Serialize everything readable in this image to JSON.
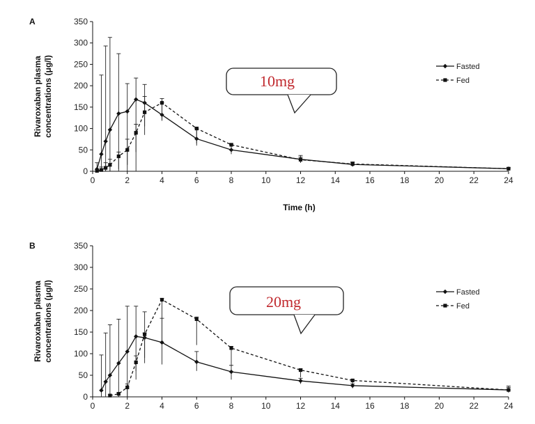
{
  "chart_data": [
    {
      "panel": "A",
      "type": "line",
      "xlabel": "Time (h)",
      "ylabel": "Rivaroxaban plasma concentrations (μg/l)",
      "xlim": [
        0,
        24
      ],
      "ylim": [
        0,
        350
      ],
      "xticks": [
        0,
        2,
        4,
        6,
        8,
        10,
        12,
        14,
        16,
        18,
        20,
        22,
        24
      ],
      "yticks": [
        0,
        50,
        100,
        150,
        200,
        250,
        300,
        350
      ],
      "grid": false,
      "legend_position": "top-right",
      "callout": "10mg",
      "callout_color": "#c0282d",
      "series": [
        {
          "name": "Fasted",
          "style": "solid",
          "x": [
            0.25,
            0.5,
            0.75,
            1,
            1.5,
            2,
            2.5,
            3,
            4,
            6,
            8,
            12,
            15,
            24
          ],
          "y": [
            5,
            40,
            70,
            97,
            135,
            140,
            168,
            160,
            132,
            76,
            50,
            28,
            16,
            6
          ],
          "err_upper": [
            20,
            225,
            293,
            313,
            275,
            205,
            218,
            203,
            160,
            100,
            62,
            37,
            20,
            9
          ],
          "err_lower": [
            0,
            0,
            0,
            0,
            0,
            0,
            0,
            105,
            118,
            60,
            40,
            20,
            12,
            3
          ]
        },
        {
          "name": "Fed",
          "style": "dashed",
          "x": [
            0.25,
            0.5,
            0.75,
            1,
            1.5,
            2,
            2.5,
            3,
            4,
            6,
            8,
            12,
            15,
            24
          ],
          "y": [
            1,
            3,
            8,
            15,
            35,
            50,
            90,
            138,
            160,
            100,
            62,
            27,
            17,
            6
          ],
          "err_upper": [
            4,
            10,
            20,
            28,
            45,
            75,
            110,
            175,
            170,
            103,
            65,
            33,
            22,
            9
          ],
          "err_lower": [
            0,
            0,
            0,
            0,
            5,
            15,
            45,
            85,
            120,
            65,
            45,
            20,
            12,
            3
          ]
        }
      ]
    },
    {
      "panel": "B",
      "type": "line",
      "xlabel": "",
      "ylabel": "Rivaroxaban plasma concentrations (μg/l)",
      "xlim": [
        0,
        24
      ],
      "ylim": [
        0,
        350
      ],
      "xticks": [
        0,
        2,
        4,
        6,
        8,
        10,
        12,
        14,
        16,
        18,
        20,
        22,
        24
      ],
      "yticks": [
        0,
        50,
        100,
        150,
        200,
        250,
        300,
        350
      ],
      "grid": false,
      "legend_position": "top-right",
      "callout": "20mg",
      "callout_color": "#c0282d",
      "series": [
        {
          "name": "Fasted",
          "style": "solid",
          "x": [
            0.5,
            0.75,
            1,
            1.5,
            2,
            2.5,
            3,
            4,
            6,
            8,
            12,
            15,
            24
          ],
          "y": [
            15,
            35,
            50,
            78,
            105,
            140,
            137,
            126,
            81,
            58,
            37,
            26,
            16
          ],
          "err_upper": [
            97,
            148,
            167,
            180,
            210,
            210,
            197,
            182,
            105,
            73,
            43,
            30,
            25
          ],
          "err_lower": [
            0,
            0,
            0,
            0,
            0,
            60,
            78,
            75,
            60,
            40,
            30,
            20,
            10
          ]
        },
        {
          "name": "Fed",
          "style": "dashed",
          "x": [
            1,
            1.5,
            2,
            2.5,
            3,
            4,
            6,
            8,
            12,
            15,
            24
          ],
          "y": [
            3,
            7,
            22,
            80,
            145,
            225,
            180,
            113,
            62,
            38,
            16
          ],
          "err_upper": [
            5,
            10,
            30,
            95,
            148,
            228,
            185,
            117,
            65,
            40,
            22
          ],
          "err_lower": [
            0,
            0,
            0,
            40,
            90,
            130,
            120,
            70,
            45,
            30,
            10
          ]
        }
      ]
    }
  ]
}
